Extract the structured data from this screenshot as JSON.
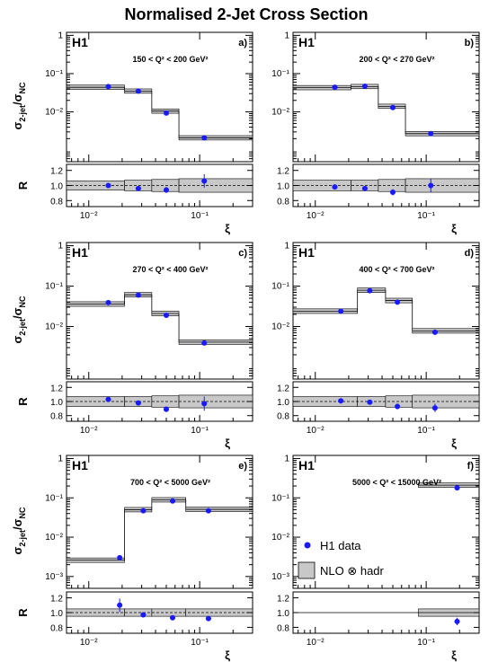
{
  "title": "Normalised 2-Jet Cross Section",
  "ylabel_top": "σ2-jet/σNC",
  "ylabel_top_parts": {
    "main": "σ",
    "sub1": "2-jet",
    "sep": "/σ",
    "sub2": "NC"
  },
  "ylabel_ratio": "R",
  "xlabel": "ξ",
  "experiment": "H1",
  "legend": {
    "data_label": "H1 data",
    "band_label": "NLO ⊗ hadr"
  },
  "colors": {
    "data": "#1a1aff",
    "band": "#c8c8c8",
    "line": "#000000"
  },
  "chart_data": [
    {
      "type": "scatter",
      "panel": "a)",
      "range_label": "150 < Q² < 200 GeV²",
      "xscale": "log",
      "yscale": "log",
      "xlim": [
        0.0063,
        0.3
      ],
      "ylim": [
        0.0005,
        1.2
      ],
      "ratio_ylim": [
        0.72,
        1.28
      ],
      "x_ticks": [
        "10⁻²",
        "10⁻¹"
      ],
      "y_ticks": [
        "10⁻²",
        "10⁻¹",
        "1"
      ],
      "ratio_ticks": [
        "0.8",
        "1.0",
        "1.2"
      ],
      "bin_edges": [
        0.0063,
        0.021,
        0.037,
        0.065,
        0.3
      ],
      "nlo": [
        0.044,
        0.035,
        0.0105,
        0.0021
      ],
      "data_x": [
        0.015,
        0.028,
        0.05,
        0.11
      ],
      "data_y": [
        0.046,
        0.035,
        0.0093,
        0.0021
      ],
      "ratio_band": [
        [
          0.94,
          1.06
        ],
        [
          0.93,
          1.07
        ],
        [
          0.92,
          1.08
        ],
        [
          0.91,
          1.09
        ]
      ],
      "ratio_data": [
        1.0,
        0.96,
        0.94,
        1.06
      ],
      "ratio_err": [
        0.03,
        0.03,
        0.04,
        0.09
      ]
    },
    {
      "type": "scatter",
      "panel": "b)",
      "range_label": "200 < Q² < 270 GeV²",
      "xscale": "log",
      "yscale": "log",
      "xlim": [
        0.0063,
        0.3
      ],
      "ylim": [
        0.0005,
        1.2
      ],
      "ratio_ylim": [
        0.72,
        1.28
      ],
      "x_ticks": [
        "10⁻²",
        "10⁻¹"
      ],
      "y_ticks": [
        "10⁻²",
        "10⁻¹",
        "1"
      ],
      "ratio_ticks": [
        "0.8",
        "1.0",
        "1.2"
      ],
      "bin_edges": [
        0.0063,
        0.021,
        0.037,
        0.065,
        0.3
      ],
      "nlo": [
        0.043,
        0.046,
        0.014,
        0.0027
      ],
      "data_x": [
        0.015,
        0.028,
        0.05,
        0.11
      ],
      "data_y": [
        0.044,
        0.047,
        0.013,
        0.0027
      ],
      "ratio_band": [
        [
          0.93,
          1.07
        ],
        [
          0.93,
          1.07
        ],
        [
          0.92,
          1.08
        ],
        [
          0.91,
          1.09
        ]
      ],
      "ratio_data": [
        0.98,
        0.96,
        0.91,
        1.0
      ],
      "ratio_err": [
        0.03,
        0.03,
        0.04,
        0.09
      ]
    },
    {
      "type": "scatter",
      "panel": "c)",
      "range_label": "270 < Q² < 400 GeV²",
      "xscale": "log",
      "yscale": "log",
      "xlim": [
        0.0063,
        0.3
      ],
      "ylim": [
        0.0005,
        1.2
      ],
      "ratio_ylim": [
        0.72,
        1.28
      ],
      "x_ticks": [
        "10⁻²",
        "10⁻¹"
      ],
      "y_ticks": [
        "10⁻²",
        "10⁻¹",
        "1"
      ],
      "ratio_ticks": [
        "0.8",
        "1.0",
        "1.2"
      ],
      "bin_edges": [
        0.0063,
        0.021,
        0.037,
        0.065,
        0.3
      ],
      "nlo": [
        0.036,
        0.061,
        0.021,
        0.0041
      ],
      "data_x": [
        0.015,
        0.028,
        0.05,
        0.11
      ],
      "data_y": [
        0.039,
        0.06,
        0.019,
        0.0039
      ],
      "ratio_band": [
        [
          0.93,
          1.07
        ],
        [
          0.93,
          1.07
        ],
        [
          0.92,
          1.08
        ],
        [
          0.91,
          1.09
        ]
      ],
      "ratio_data": [
        1.03,
        0.98,
        0.89,
        0.97
      ],
      "ratio_err": [
        0.03,
        0.03,
        0.04,
        0.1
      ]
    },
    {
      "type": "scatter",
      "panel": "d)",
      "range_label": "400 < Q² < 700 GeV²",
      "xscale": "log",
      "yscale": "log",
      "xlim": [
        0.0063,
        0.3
      ],
      "ylim": [
        0.0005,
        1.2
      ],
      "ratio_ylim": [
        0.72,
        1.28
      ],
      "x_ticks": [
        "10⁻²",
        "10⁻¹"
      ],
      "y_ticks": [
        "10⁻²",
        "10⁻¹",
        "1"
      ],
      "ratio_ticks": [
        "0.8",
        "1.0",
        "1.2"
      ],
      "bin_edges": [
        0.0063,
        0.024,
        0.043,
        0.075,
        0.3
      ],
      "nlo": [
        0.024,
        0.079,
        0.044,
        0.0078
      ],
      "data_x": [
        0.017,
        0.031,
        0.055,
        0.12
      ],
      "data_y": [
        0.024,
        0.077,
        0.04,
        0.0072
      ],
      "ratio_band": [
        [
          0.93,
          1.07
        ],
        [
          0.93,
          1.07
        ],
        [
          0.92,
          1.08
        ],
        [
          0.91,
          1.09
        ]
      ],
      "ratio_data": [
        1.01,
        0.99,
        0.93,
        0.91
      ],
      "ratio_err": [
        0.03,
        0.03,
        0.04,
        0.06
      ]
    },
    {
      "type": "scatter",
      "panel": "e)",
      "range_label": "700 < Q² < 5000 GeV²",
      "xscale": "log",
      "yscale": "log",
      "xlim": [
        0.0063,
        0.3
      ],
      "ylim": [
        0.0005,
        1.2
      ],
      "ratio_ylim": [
        0.72,
        1.28
      ],
      "x_ticks": [
        "10⁻²",
        "10⁻¹"
      ],
      "y_ticks": [
        "10⁻³",
        "10⁻²",
        "10⁻¹",
        "1"
      ],
      "ratio_ticks": [
        "0.8",
        "1.0",
        "1.2"
      ],
      "bin_edges": [
        0.0063,
        0.021,
        0.037,
        0.075,
        0.3
      ],
      "nlo": [
        0.0026,
        0.05,
        0.089,
        0.051
      ],
      "data_x": [
        0.019,
        0.031,
        0.057,
        0.12
      ],
      "data_y": [
        0.003,
        0.047,
        0.083,
        0.047
      ],
      "ratio_band": [
        [
          0.95,
          1.05
        ],
        [
          0.95,
          1.05
        ],
        [
          0.95,
          1.05
        ],
        [
          0.95,
          1.05
        ]
      ],
      "ratio_data": [
        1.1,
        0.97,
        0.93,
        0.92
      ],
      "ratio_err": [
        0.09,
        0.03,
        0.03,
        0.03
      ]
    },
    {
      "type": "scatter",
      "panel": "f)",
      "range_label": "5000 < Q² < 15000 GeV²",
      "xscale": "log",
      "yscale": "log",
      "xlim": [
        0.0063,
        0.3
      ],
      "ylim": [
        0.0005,
        1.2
      ],
      "ratio_ylim": [
        0.72,
        1.28
      ],
      "x_ticks": [
        "10⁻²",
        "10⁻¹"
      ],
      "y_ticks": [
        "10⁻³",
        "10⁻²",
        "10⁻¹",
        "1"
      ],
      "ratio_ticks": [
        "0.8",
        "1.0",
        "1.2"
      ],
      "bin_edges": [
        0.0063,
        0.085,
        0.3
      ],
      "nlo": [
        null,
        0.21
      ],
      "data_x": [
        0.19
      ],
      "data_y": [
        0.18
      ],
      "ratio_band": [
        null,
        [
          0.95,
          1.05
        ]
      ],
      "ratio_data": [
        0.88
      ],
      "ratio_err": [
        0.05
      ],
      "legend": true
    }
  ]
}
